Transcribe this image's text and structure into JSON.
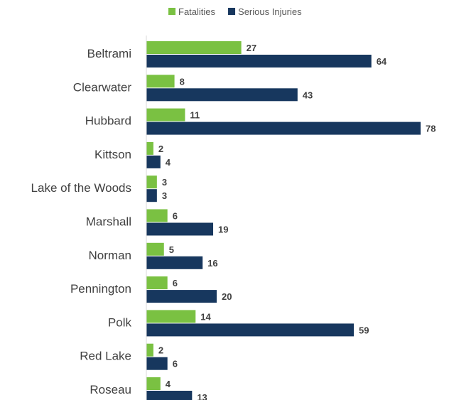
{
  "chart_data": {
    "type": "bar",
    "orientation": "horizontal",
    "title": "",
    "xlabel": "",
    "ylabel": "",
    "legend_position": "top-center",
    "grid": false,
    "xlim": [
      0,
      83
    ],
    "categories": [
      "Beltrami",
      "Clearwater",
      "Hubbard",
      "Kittson",
      "Lake of the Woods",
      "Marshall",
      "Norman",
      "Pennington",
      "Polk",
      "Red Lake",
      "Roseau"
    ],
    "series": [
      {
        "name": "Fatalities",
        "color": "#7ac142",
        "values": [
          27,
          8,
          11,
          2,
          3,
          6,
          5,
          6,
          14,
          2,
          4
        ]
      },
      {
        "name": "Serious Injuries",
        "color": "#17375e",
        "values": [
          64,
          43,
          78,
          4,
          3,
          19,
          16,
          20,
          59,
          6,
          13
        ]
      }
    ]
  }
}
